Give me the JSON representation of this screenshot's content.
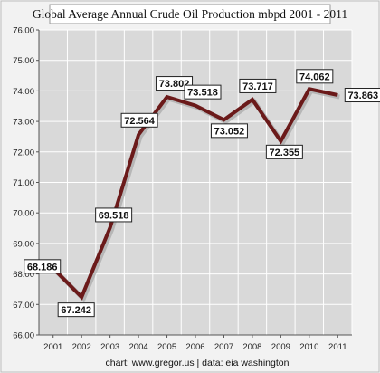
{
  "chart_data": {
    "type": "line",
    "title": "Global Average Annual Crude Oil Production mbpd 2001 - 2011",
    "xlabel": "",
    "ylabel": "",
    "categories": [
      "2001",
      "2002",
      "2003",
      "2004",
      "2005",
      "2006",
      "2007",
      "2008",
      "2009",
      "2010",
      "2011"
    ],
    "series": [
      {
        "values": [
          68.186,
          67.242,
          69.518,
          72.564,
          73.802,
          73.518,
          73.052,
          73.717,
          72.355,
          74.062,
          73.863
        ],
        "labels": [
          "68.186",
          "67.242",
          "69.518",
          "72.564",
          "73.802",
          "73.518",
          "73.052",
          "73.717",
          "72.355",
          "74.062",
          "73.863"
        ]
      }
    ],
    "ylim": [
      66,
      76
    ],
    "yticks": [
      "66.00",
      "67.00",
      "68.00",
      "69.00",
      "70.00",
      "71.00",
      "72.00",
      "73.00",
      "74.00",
      "75.00",
      "76.00"
    ],
    "grid": true,
    "legend": "none",
    "credit": "chart:  www.gregor.us   |   data: eia washington",
    "colors": {
      "line": "#6b1a1a",
      "grid": "#ffffff",
      "plot_background": "#d9d9d9",
      "page_background": "#f2f2f2"
    }
  }
}
